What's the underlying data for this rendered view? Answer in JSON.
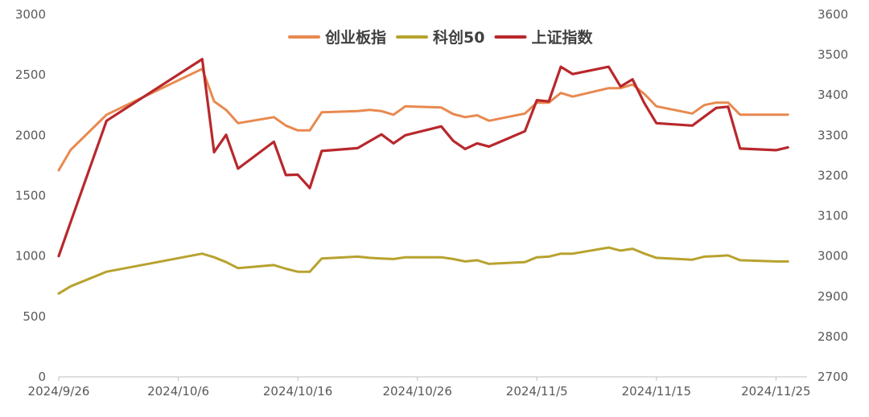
{
  "chart_data": {
    "type": "line",
    "title": "",
    "xlabel": "",
    "ylabel": "",
    "x_ticks": [
      "2024/9/26",
      "2024/10/6",
      "2024/10/16",
      "2024/10/26",
      "2024/11/5",
      "2024/11/15",
      "2024/11/25"
    ],
    "y_left": {
      "range": [
        0,
        3000
      ],
      "ticks": [
        "0",
        "500",
        "1000",
        "1500",
        "2000",
        "2500",
        "3000"
      ]
    },
    "y_right": {
      "range": [
        2700,
        3600
      ],
      "ticks": [
        "2700",
        "2800",
        "2900",
        "3000",
        "3100",
        "3200",
        "3300",
        "3400",
        "3500",
        "3600"
      ]
    },
    "grid": false,
    "legend_position": "top-center",
    "series": [
      {
        "name": "创业板指",
        "axis": "left",
        "color": "#E8894F",
        "points": [
          [
            "2024/9/26",
            1710
          ],
          [
            "2024/9/27",
            1880
          ],
          [
            "2024/9/30",
            2170
          ],
          [
            "2024/10/8",
            2550
          ],
          [
            "2024/10/9",
            2280
          ],
          [
            "2024/10/10",
            2210
          ],
          [
            "2024/10/11",
            2100
          ],
          [
            "2024/10/14",
            2150
          ],
          [
            "2024/10/15",
            2080
          ],
          [
            "2024/10/16",
            2040
          ],
          [
            "2024/10/17",
            2040
          ],
          [
            "2024/10/18",
            2190
          ],
          [
            "2024/10/21",
            2200
          ],
          [
            "2024/10/22",
            2210
          ],
          [
            "2024/10/23",
            2200
          ],
          [
            "2024/10/24",
            2170
          ],
          [
            "2024/10/25",
            2240
          ],
          [
            "2024/10/28",
            2230
          ],
          [
            "2024/10/29",
            2175
          ],
          [
            "2024/10/30",
            2150
          ],
          [
            "2024/10/31",
            2165
          ],
          [
            "2024/11/1",
            2120
          ],
          [
            "2024/11/4",
            2180
          ],
          [
            "2024/11/5",
            2270
          ],
          [
            "2024/11/6",
            2270
          ],
          [
            "2024/11/7",
            2350
          ],
          [
            "2024/11/8",
            2320
          ],
          [
            "2024/11/11",
            2390
          ],
          [
            "2024/11/12",
            2390
          ],
          [
            "2024/11/13",
            2420
          ],
          [
            "2024/11/14",
            2340
          ],
          [
            "2024/11/15",
            2240
          ],
          [
            "2024/11/18",
            2180
          ],
          [
            "2024/11/19",
            2250
          ],
          [
            "2024/11/20",
            2270
          ],
          [
            "2024/11/21",
            2270
          ],
          [
            "2024/11/22",
            2170
          ],
          [
            "2024/11/25",
            2170
          ],
          [
            "2024/11/26",
            2170
          ]
        ]
      },
      {
        "name": "科创50",
        "axis": "left",
        "color": "#B8A22E",
        "points": [
          [
            "2024/9/26",
            690
          ],
          [
            "2024/9/27",
            750
          ],
          [
            "2024/9/30",
            870
          ],
          [
            "2024/10/8",
            1020
          ],
          [
            "2024/10/9",
            990
          ],
          [
            "2024/10/10",
            950
          ],
          [
            "2024/10/11",
            900
          ],
          [
            "2024/10/14",
            925
          ],
          [
            "2024/10/15",
            895
          ],
          [
            "2024/10/16",
            870
          ],
          [
            "2024/10/17",
            870
          ],
          [
            "2024/10/18",
            980
          ],
          [
            "2024/10/21",
            995
          ],
          [
            "2024/10/22",
            985
          ],
          [
            "2024/10/23",
            980
          ],
          [
            "2024/10/24",
            975
          ],
          [
            "2024/10/25",
            990
          ],
          [
            "2024/10/28",
            990
          ],
          [
            "2024/10/29",
            975
          ],
          [
            "2024/10/30",
            955
          ],
          [
            "2024/10/31",
            965
          ],
          [
            "2024/11/1",
            935
          ],
          [
            "2024/11/4",
            950
          ],
          [
            "2024/11/5",
            990
          ],
          [
            "2024/11/6",
            995
          ],
          [
            "2024/11/7",
            1020
          ],
          [
            "2024/11/8",
            1020
          ],
          [
            "2024/11/11",
            1070
          ],
          [
            "2024/11/12",
            1045
          ],
          [
            "2024/11/13",
            1060
          ],
          [
            "2024/11/14",
            1020
          ],
          [
            "2024/11/15",
            985
          ],
          [
            "2024/11/18",
            970
          ],
          [
            "2024/11/19",
            995
          ],
          [
            "2024/11/20",
            1000
          ],
          [
            "2024/11/21",
            1005
          ],
          [
            "2024/11/22",
            965
          ],
          [
            "2024/11/25",
            955
          ],
          [
            "2024/11/26",
            955
          ]
        ]
      },
      {
        "name": "上证指数",
        "axis": "right",
        "color": "#B8282C",
        "points": [
          [
            "2024/9/26",
            3000
          ],
          [
            "2024/9/27",
            3085
          ],
          [
            "2024/9/30",
            3336
          ],
          [
            "2024/10/8",
            3489
          ],
          [
            "2024/10/9",
            3258
          ],
          [
            "2024/10/10",
            3301
          ],
          [
            "2024/10/11",
            3217
          ],
          [
            "2024/10/14",
            3284
          ],
          [
            "2024/10/15",
            3201
          ],
          [
            "2024/10/16",
            3202
          ],
          [
            "2024/10/17",
            3169
          ],
          [
            "2024/10/18",
            3261
          ],
          [
            "2024/10/21",
            3268
          ],
          [
            "2024/10/22",
            3285
          ],
          [
            "2024/10/23",
            3302
          ],
          [
            "2024/10/24",
            3280
          ],
          [
            "2024/10/25",
            3300
          ],
          [
            "2024/10/28",
            3322
          ],
          [
            "2024/10/29",
            3286
          ],
          [
            "2024/10/30",
            3266
          ],
          [
            "2024/10/31",
            3280
          ],
          [
            "2024/11/1",
            3272
          ],
          [
            "2024/11/4",
            3310
          ],
          [
            "2024/11/5",
            3387
          ],
          [
            "2024/11/6",
            3384
          ],
          [
            "2024/11/7",
            3470
          ],
          [
            "2024/11/8",
            3452
          ],
          [
            "2024/11/11",
            3470
          ],
          [
            "2024/11/12",
            3421
          ],
          [
            "2024/11/13",
            3439
          ],
          [
            "2024/11/14",
            3379
          ],
          [
            "2024/11/15",
            3330
          ],
          [
            "2024/11/18",
            3324
          ],
          [
            "2024/11/19",
            3346
          ],
          [
            "2024/11/20",
            3368
          ],
          [
            "2024/11/21",
            3371
          ],
          [
            "2024/11/22",
            3267
          ],
          [
            "2024/11/25",
            3263
          ],
          [
            "2024/11/26",
            3270
          ]
        ]
      }
    ]
  }
}
